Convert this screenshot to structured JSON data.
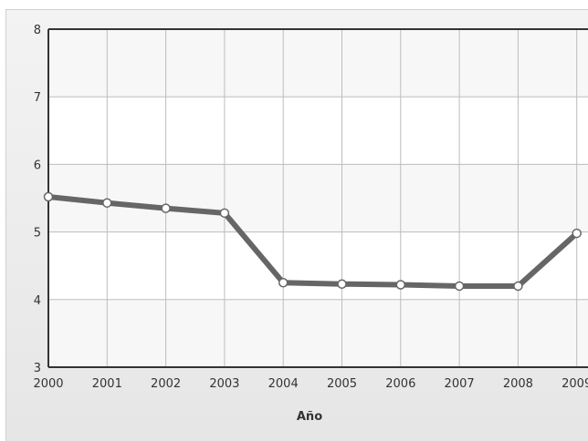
{
  "chart_data": {
    "type": "line",
    "title": "",
    "xlabel": "Año",
    "ylabel": "",
    "ylim": [
      3,
      8
    ],
    "yticks": [
      3,
      4,
      5,
      6,
      7,
      8
    ],
    "categories": [
      "2000",
      "2001",
      "2002",
      "2003",
      "2004",
      "2005",
      "2006",
      "2007",
      "2008",
      "2009"
    ],
    "series": [
      {
        "values": [
          5.52,
          5.43,
          5.35,
          5.28,
          4.25,
          4.23,
          4.22,
          4.2,
          4.2,
          4.98
        ]
      }
    ],
    "grid": true,
    "colors": {
      "line": "#666666",
      "marker_fill": "#ffffff",
      "grid": "#bdbdbd",
      "axis": "#333333"
    }
  }
}
